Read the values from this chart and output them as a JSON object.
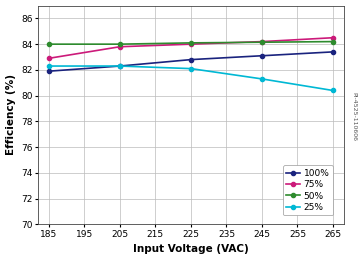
{
  "x_values": [
    185,
    205,
    225,
    245,
    265
  ],
  "series": {
    "100%": {
      "y": [
        81.9,
        82.3,
        82.8,
        83.1,
        83.4
      ],
      "color": "#1a237e",
      "linewidth": 1.2,
      "marker": "o",
      "markersize": 3
    },
    "75%": {
      "y": [
        82.9,
        83.8,
        84.0,
        84.2,
        84.5
      ],
      "color": "#cc1a7a",
      "linewidth": 1.2,
      "marker": "o",
      "markersize": 3
    },
    "50%": {
      "y": [
        84.0,
        84.0,
        84.1,
        84.15,
        84.2
      ],
      "color": "#2e8b2e",
      "linewidth": 1.2,
      "marker": "o",
      "markersize": 3
    },
    "25%": {
      "y": [
        82.3,
        82.3,
        82.1,
        81.3,
        80.4
      ],
      "color": "#00b8d4",
      "linewidth": 1.2,
      "marker": "o",
      "markersize": 3
    }
  },
  "xlabel": "Input Voltage (VAC)",
  "ylabel": "Efficiency (%)",
  "xlim": [
    182,
    268
  ],
  "ylim": [
    70,
    87
  ],
  "xticks": [
    185,
    195,
    205,
    215,
    225,
    235,
    245,
    255,
    265
  ],
  "yticks": [
    70,
    72,
    74,
    76,
    78,
    80,
    82,
    84,
    86
  ],
  "grid_color": "#bbbbbb",
  "bg_color": "#ffffff",
  "legend_order": [
    "100%",
    "75%",
    "50%",
    "25%"
  ],
  "watermark": "PI-4525-110606",
  "tick_fontsize": 6.5,
  "label_fontsize": 7.5
}
